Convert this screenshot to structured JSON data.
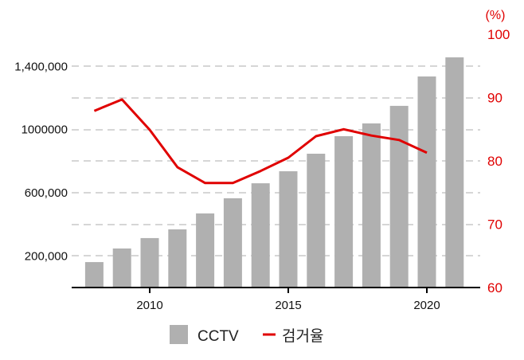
{
  "chart_data": {
    "type": "bar+line",
    "categories": [
      2008,
      2009,
      2010,
      2011,
      2012,
      2013,
      2014,
      2015,
      2016,
      2017,
      2018,
      2019,
      2020,
      2021
    ],
    "series": [
      {
        "name": "CCTV",
        "type": "bar",
        "axis": "left",
        "values": [
          161000,
          247000,
          313000,
          368000,
          469000,
          565000,
          660000,
          736000,
          847000,
          958000,
          1039000,
          1150000,
          1336000,
          1457000
        ]
      },
      {
        "name": "검거율",
        "type": "line",
        "axis": "right",
        "values": [
          87.9,
          89.7,
          84.9,
          79.0,
          76.5,
          76.5,
          78.4,
          80.5,
          83.9,
          85.0,
          84.0,
          83.3,
          81.3,
          null
        ]
      }
    ],
    "x_ticks": [
      "2010",
      "2015",
      "2020"
    ],
    "x_tick_values": [
      2010,
      2015,
      2020
    ],
    "left_ticks": [
      "200,000",
      "600,000",
      "1000000",
      "1,400,000"
    ],
    "left_tick_values": [
      200000,
      600000,
      1000000,
      1400000
    ],
    "right_ticks": [
      "60",
      "70",
      "80",
      "90",
      "100"
    ],
    "right_tick_values": [
      60,
      70,
      80,
      90,
      100
    ],
    "right_unit": "(%)",
    "ylim_left": [
      0,
      1600000
    ],
    "ylim_right": [
      60,
      100
    ],
    "grid": true,
    "legend_position": "bottom",
    "colors": {
      "bar": "#b0b0b0",
      "line": "#e00000",
      "right_axis": "#e00000"
    }
  }
}
